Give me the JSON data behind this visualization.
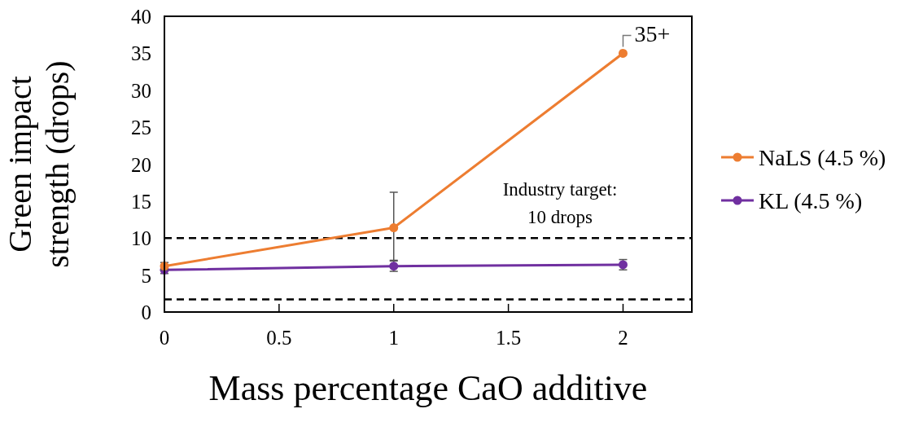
{
  "chart_data": {
    "type": "line",
    "xlabel": "Mass percentage CaO additive",
    "ylabel": "Green impact\nstrength (drops)",
    "x": [
      0,
      1,
      2
    ],
    "series": [
      {
        "name": "NaLS (4.5 %)",
        "color": "#ed7d31",
        "values": [
          6.2,
          11.4,
          35
        ],
        "errors": [
          0.5,
          [
            7.0,
            16.2
          ],
          null
        ]
      },
      {
        "name": "KL (4.5 %)",
        "color": "#7030a0",
        "values": [
          5.7,
          6.2,
          6.4
        ],
        "errors": [
          0.5,
          0.7,
          0.7
        ]
      }
    ],
    "xlim": [
      0,
      2.3
    ],
    "xticks": [
      0,
      0.5,
      1,
      1.5,
      2
    ],
    "ylim": [
      0,
      40
    ],
    "yticks": [
      0,
      5,
      10,
      15,
      20,
      25,
      30,
      35,
      40
    ],
    "ref_lines": [
      {
        "axis": "y",
        "value": 10,
        "label": "Industry target:\n10 drops",
        "color": "#000000",
        "line_style": "dashed"
      },
      {
        "axis": "y",
        "value": 1.7,
        "color": "#000000",
        "line_style": "dashed"
      }
    ],
    "annotations": [
      {
        "text": "35+",
        "x": 2,
        "y": 35
      }
    ],
    "grid": false,
    "legend": "right",
    "marker": "circle",
    "line_style": "solid"
  }
}
